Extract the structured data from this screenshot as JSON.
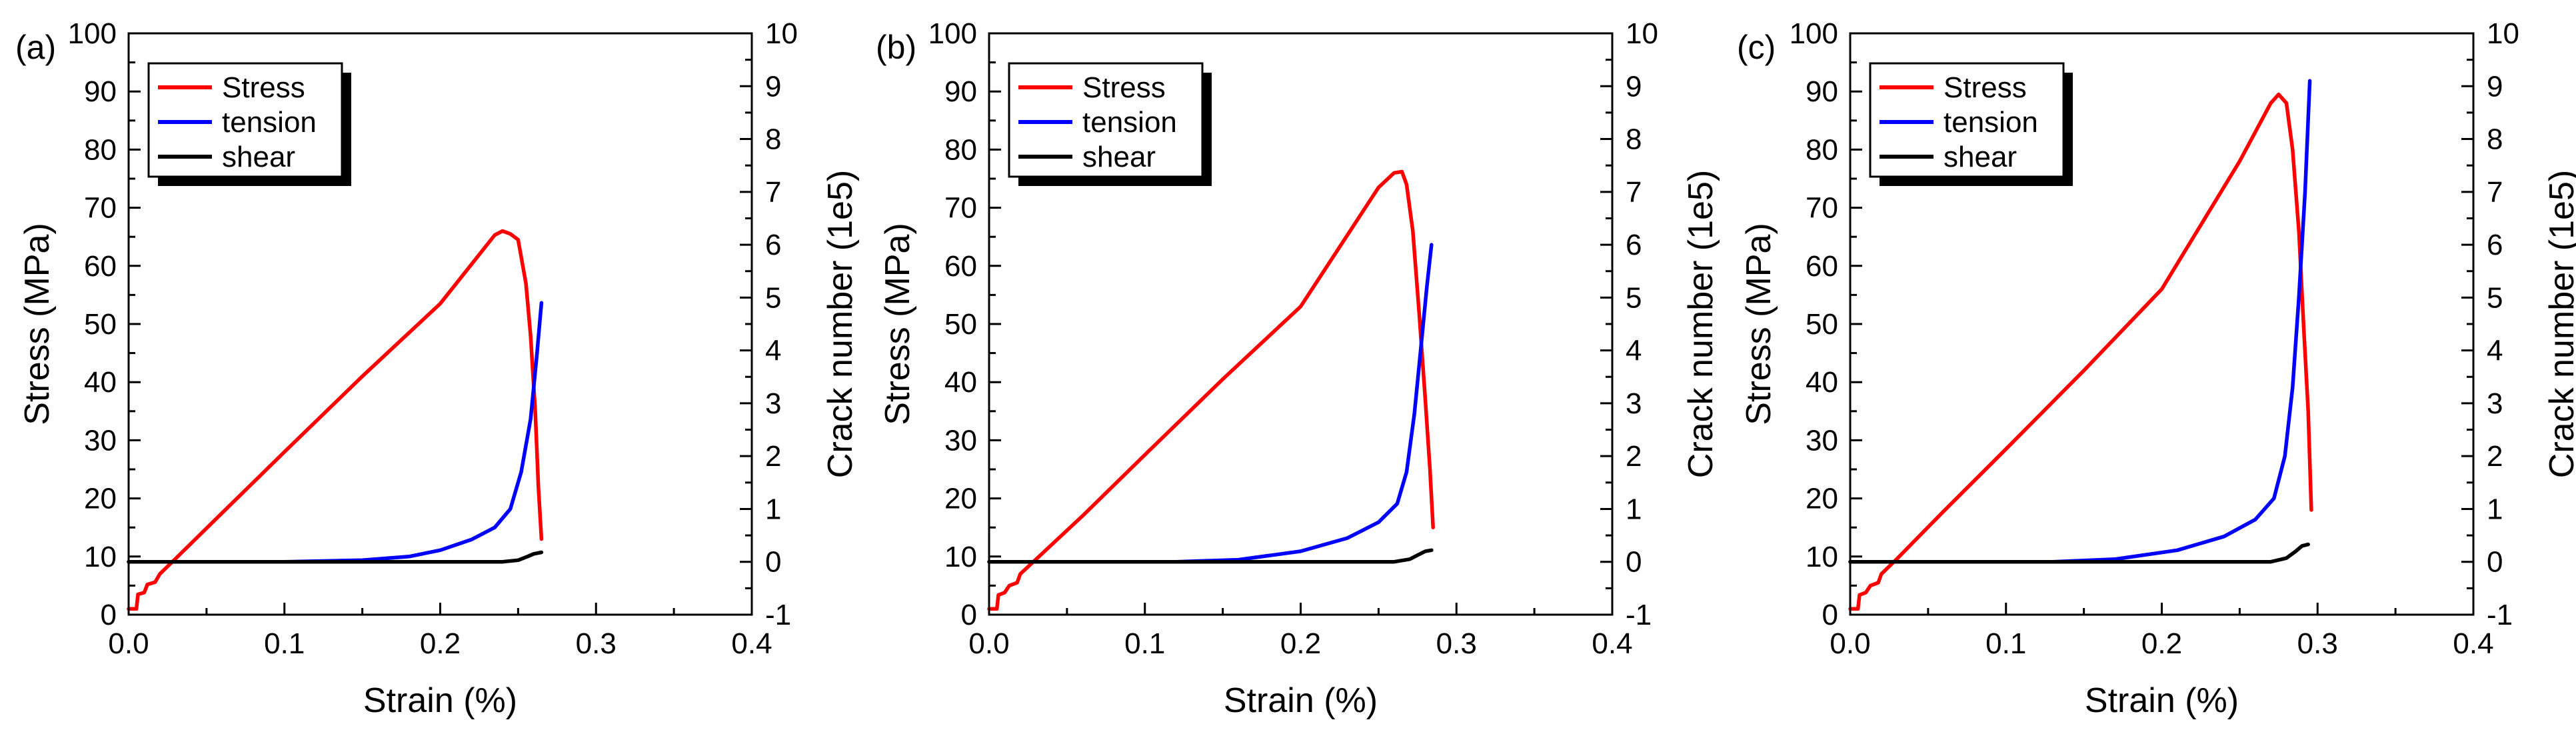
{
  "chart_data": [
    {
      "type": "line",
      "panel_label": "(a)",
      "xlabel": "Strain (%)",
      "ylabel": "Stress (MPa)",
      "y2label": "Crack number (1e5)",
      "xlim": [
        0,
        0.4
      ],
      "ylim": [
        0,
        100
      ],
      "y2lim": [
        -1,
        10
      ],
      "x_ticks": [
        "0.0",
        "0.1",
        "0.2",
        "0.3",
        "0.4"
      ],
      "y_ticks": [
        "0",
        "10",
        "20",
        "30",
        "40",
        "50",
        "60",
        "70",
        "80",
        "90",
        "100"
      ],
      "y2_ticks": [
        "-1",
        "0",
        "1",
        "2",
        "3",
        "4",
        "5",
        "6",
        "7",
        "8",
        "9",
        "10"
      ],
      "legend": {
        "position": "top-left",
        "entries": [
          "Stress",
          "tension",
          "shear"
        ]
      },
      "series": [
        {
          "name": "Stress",
          "axis": "left",
          "color": "#ff0000",
          "points": [
            [
              0,
              1
            ],
            [
              0.005,
              1
            ],
            [
              0.006,
              3.5
            ],
            [
              0.01,
              3.8
            ],
            [
              0.012,
              5.2
            ],
            [
              0.017,
              5.6
            ],
            [
              0.02,
              7
            ],
            [
              0.03,
              9.6
            ],
            [
              0.06,
              17.5
            ],
            [
              0.1,
              28
            ],
            [
              0.15,
              41
            ],
            [
              0.2,
              53.5
            ],
            [
              0.235,
              65.3
            ],
            [
              0.24,
              66
            ],
            [
              0.245,
              65.5
            ],
            [
              0.25,
              64.5
            ],
            [
              0.255,
              57
            ],
            [
              0.258,
              48
            ],
            [
              0.261,
              35
            ],
            [
              0.263,
              22
            ],
            [
              0.265,
              13
            ]
          ]
        },
        {
          "name": "tension",
          "axis": "right",
          "color": "#0000ff",
          "points": [
            [
              0,
              0
            ],
            [
              0.1,
              0
            ],
            [
              0.15,
              0.03
            ],
            [
              0.18,
              0.1
            ],
            [
              0.2,
              0.22
            ],
            [
              0.22,
              0.42
            ],
            [
              0.235,
              0.65
            ],
            [
              0.245,
              1
            ],
            [
              0.252,
              1.7
            ],
            [
              0.258,
              2.7
            ],
            [
              0.262,
              3.9
            ],
            [
              0.265,
              4.9
            ]
          ]
        },
        {
          "name": "shear",
          "axis": "right",
          "color": "#000000",
          "points": [
            [
              0,
              0
            ],
            [
              0.24,
              0
            ],
            [
              0.25,
              0.03
            ],
            [
              0.256,
              0.1
            ],
            [
              0.26,
              0.15
            ],
            [
              0.265,
              0.18
            ]
          ]
        }
      ]
    },
    {
      "type": "line",
      "panel_label": "(b)",
      "xlabel": "Strain (%)",
      "ylabel": "Stress (MPa)",
      "y2label": "Crack number (1e5)",
      "xlim": [
        0,
        0.4
      ],
      "ylim": [
        0,
        100
      ],
      "y2lim": [
        -1,
        10
      ],
      "x_ticks": [
        "0.0",
        "0.1",
        "0.2",
        "0.3",
        "0.4"
      ],
      "y_ticks": [
        "0",
        "10",
        "20",
        "30",
        "40",
        "50",
        "60",
        "70",
        "80",
        "90",
        "100"
      ],
      "y2_ticks": [
        "-1",
        "0",
        "1",
        "2",
        "3",
        "4",
        "5",
        "6",
        "7",
        "8",
        "9",
        "10"
      ],
      "legend": {
        "position": "top-left",
        "entries": [
          "Stress",
          "tension",
          "shear"
        ]
      },
      "series": [
        {
          "name": "Stress",
          "axis": "left",
          "color": "#ff0000",
          "points": [
            [
              0,
              1
            ],
            [
              0.005,
              1
            ],
            [
              0.006,
              3.4
            ],
            [
              0.01,
              3.8
            ],
            [
              0.013,
              5
            ],
            [
              0.018,
              5.5
            ],
            [
              0.02,
              7
            ],
            [
              0.03,
              9.5
            ],
            [
              0.06,
              17
            ],
            [
              0.1,
              27.5
            ],
            [
              0.15,
              40.5
            ],
            [
              0.2,
              53
            ],
            [
              0.25,
              73.5
            ],
            [
              0.26,
              76
            ],
            [
              0.265,
              76.2
            ],
            [
              0.268,
              74
            ],
            [
              0.272,
              66
            ],
            [
              0.276,
              52
            ],
            [
              0.28,
              37
            ],
            [
              0.283,
              25
            ],
            [
              0.285,
              15
            ]
          ]
        },
        {
          "name": "tension",
          "axis": "right",
          "color": "#0000ff",
          "points": [
            [
              0,
              0
            ],
            [
              0.12,
              0
            ],
            [
              0.16,
              0.04
            ],
            [
              0.2,
              0.2
            ],
            [
              0.23,
              0.45
            ],
            [
              0.25,
              0.75
            ],
            [
              0.262,
              1.1
            ],
            [
              0.268,
              1.7
            ],
            [
              0.273,
              2.8
            ],
            [
              0.277,
              4
            ],
            [
              0.281,
              5.2
            ],
            [
              0.284,
              6
            ]
          ]
        },
        {
          "name": "shear",
          "axis": "right",
          "color": "#000000",
          "points": [
            [
              0,
              0
            ],
            [
              0.26,
              0
            ],
            [
              0.27,
              0.05
            ],
            [
              0.276,
              0.14
            ],
            [
              0.28,
              0.2
            ],
            [
              0.284,
              0.22
            ]
          ]
        }
      ]
    },
    {
      "type": "line",
      "panel_label": "(c)",
      "xlabel": "Strain (%)",
      "ylabel": "Stress (MPa)",
      "y2label": "Crack number (1e5)",
      "xlim": [
        0,
        0.4
      ],
      "ylim": [
        0,
        100
      ],
      "y2lim": [
        -1,
        10
      ],
      "x_ticks": [
        "0.0",
        "0.1",
        "0.2",
        "0.3",
        "0.4"
      ],
      "y_ticks": [
        "0",
        "10",
        "20",
        "30",
        "40",
        "50",
        "60",
        "70",
        "80",
        "90",
        "100"
      ],
      "y2_ticks": [
        "-1",
        "0",
        "1",
        "2",
        "3",
        "4",
        "5",
        "6",
        "7",
        "8",
        "9",
        "10"
      ],
      "legend": {
        "position": "top-left",
        "entries": [
          "Stress",
          "tension",
          "shear"
        ]
      },
      "series": [
        {
          "name": "Stress",
          "axis": "left",
          "color": "#ff0000",
          "points": [
            [
              0,
              1
            ],
            [
              0.005,
              1
            ],
            [
              0.006,
              3.4
            ],
            [
              0.01,
              3.8
            ],
            [
              0.013,
              5
            ],
            [
              0.018,
              5.5
            ],
            [
              0.02,
              7
            ],
            [
              0.03,
              9.6
            ],
            [
              0.06,
              17.8
            ],
            [
              0.1,
              28.5
            ],
            [
              0.15,
              42
            ],
            [
              0.2,
              56
            ],
            [
              0.25,
              78
            ],
            [
              0.27,
              88
            ],
            [
              0.275,
              89.5
            ],
            [
              0.28,
              88
            ],
            [
              0.284,
              80
            ],
            [
              0.288,
              66
            ],
            [
              0.291,
              50
            ],
            [
              0.294,
              35
            ],
            [
              0.296,
              18
            ]
          ]
        },
        {
          "name": "tension",
          "axis": "right",
          "color": "#0000ff",
          "points": [
            [
              0,
              0
            ],
            [
              0.13,
              0
            ],
            [
              0.17,
              0.05
            ],
            [
              0.21,
              0.22
            ],
            [
              0.24,
              0.48
            ],
            [
              0.26,
              0.8
            ],
            [
              0.272,
              1.2
            ],
            [
              0.279,
              2
            ],
            [
              0.284,
              3.3
            ],
            [
              0.288,
              5
            ],
            [
              0.292,
              7
            ],
            [
              0.295,
              9.1
            ]
          ]
        },
        {
          "name": "shear",
          "axis": "right",
          "color": "#000000",
          "points": [
            [
              0,
              0
            ],
            [
              0.27,
              0
            ],
            [
              0.28,
              0.07
            ],
            [
              0.286,
              0.2
            ],
            [
              0.29,
              0.3
            ],
            [
              0.294,
              0.33
            ]
          ]
        }
      ]
    }
  ]
}
